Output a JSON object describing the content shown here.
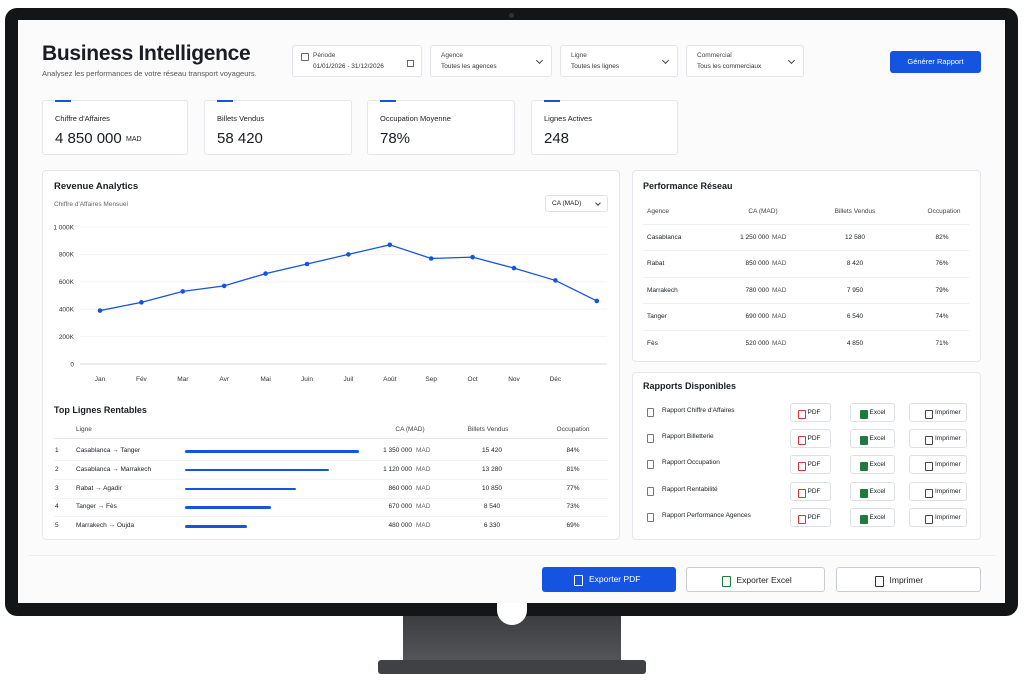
{
  "header": {
    "title": "Business Intelligence",
    "subtitle": "Analysez les performances de votre réseau transport voyageurs.",
    "button": "Générer Rapport"
  },
  "filters": [
    {
      "label": "Période",
      "value": "01/01/2026 - 31/12/2026"
    },
    {
      "label": "Agence",
      "value": "Toutes les agences"
    },
    {
      "label": "Ligne",
      "value": "Toutes les lignes"
    },
    {
      "label": "Commercial",
      "value": "Tous les commerciaux"
    }
  ],
  "kpis": [
    {
      "label": "Chiffre d'Affaires",
      "value": "4 850 000",
      "unit": "MAD"
    },
    {
      "label": "Billets Vendus",
      "value": "58 420"
    },
    {
      "label": "Occupation Moyenne",
      "value": "78%"
    },
    {
      "label": "Lignes Actives",
      "value": "248"
    }
  ],
  "revenue": {
    "title": "Revenue Analytics",
    "subtitle": "Chiffre d'Affaires Mensuel",
    "select": "CA (MAD)",
    "chart": {
      "type": "line",
      "color": "#1554e0",
      "categories": [
        "Jan",
        "Fév",
        "Mar",
        "Avr",
        "Mai",
        "Juin",
        "Juil",
        "Août",
        "Sep",
        "Oct",
        "Nov",
        "Déc",
        null
      ],
      "values": [
        390000,
        450000,
        530000,
        570000,
        660000,
        730000,
        800000,
        870000,
        770000,
        780000,
        700000,
        610000,
        460000
      ],
      "ylim": [
        0,
        1000000
      ],
      "yticks": [
        0,
        {
          "value": 200000,
          "label": "200K"
        },
        {
          "value": 400000,
          "label": "400K"
        },
        {
          "value": 600000,
          "label": "600K"
        },
        {
          "value": 800000,
          "label": "800K"
        },
        {
          "value": 1000000,
          "label": "1 000K"
        }
      ],
      "grid": true
    }
  },
  "top_lines": {
    "title": "Top Lignes Rentables",
    "columns": [
      "Ligne",
      "CA (MAD)",
      "Billets Vendus",
      "Occupation"
    ],
    "unit": "MAD",
    "rows": [
      {
        "rank": 1,
        "name": "Casablanca → Tanger",
        "ca": "1 350 000",
        "tickets": "15 420",
        "occupation": "84%"
      },
      {
        "rank": 2,
        "name": "Casablanca → Marrakech",
        "ca": "1 120 000",
        "tickets": "13 280",
        "occupation": "81%"
      },
      {
        "rank": 3,
        "name": "Rabat → Agadir",
        "ca": "860 000",
        "tickets": "10 850",
        "occupation": "77%"
      },
      {
        "rank": 4,
        "name": "Tanger → Fès",
        "ca": "670 000",
        "tickets": "8 540",
        "occupation": "73%"
      },
      {
        "rank": 5,
        "name": "Marrakech → Oujda",
        "ca": "480 000",
        "tickets": "6 330",
        "occupation": "69%"
      }
    ]
  },
  "network": {
    "title": "Performance Réseau",
    "columns": [
      "Agence",
      "CA (MAD)",
      "Billets Vendus",
      "Occupation"
    ],
    "unit": "MAD",
    "rows": [
      {
        "name": "Casablanca",
        "ca": "1 250 000",
        "tickets": "12 580",
        "occupation": "82%"
      },
      {
        "name": "Rabat",
        "ca": "850 000",
        "tickets": "8 420",
        "occupation": "76%"
      },
      {
        "name": "Marrakech",
        "ca": "780 000",
        "tickets": "7 950",
        "occupation": "79%"
      },
      {
        "name": "Tanger",
        "ca": "690 000",
        "tickets": "6 540",
        "occupation": "74%"
      },
      {
        "name": "Fès",
        "ca": "520 000",
        "tickets": "4 850",
        "occupation": "71%"
      }
    ]
  },
  "reports": {
    "title": "Rapports Disponibles",
    "buttons": [
      "PDF",
      "Excel",
      "Imprimer"
    ],
    "rows": [
      "Rapport Chiffre d'Affaires",
      "Rapport Billetterie",
      "Rapport Occupation",
      "Rapport Rentabilité",
      "Rapport Performance Agences"
    ]
  },
  "actions": [
    "Exporter PDF",
    "Exporter Excel",
    "Imprimer"
  ]
}
